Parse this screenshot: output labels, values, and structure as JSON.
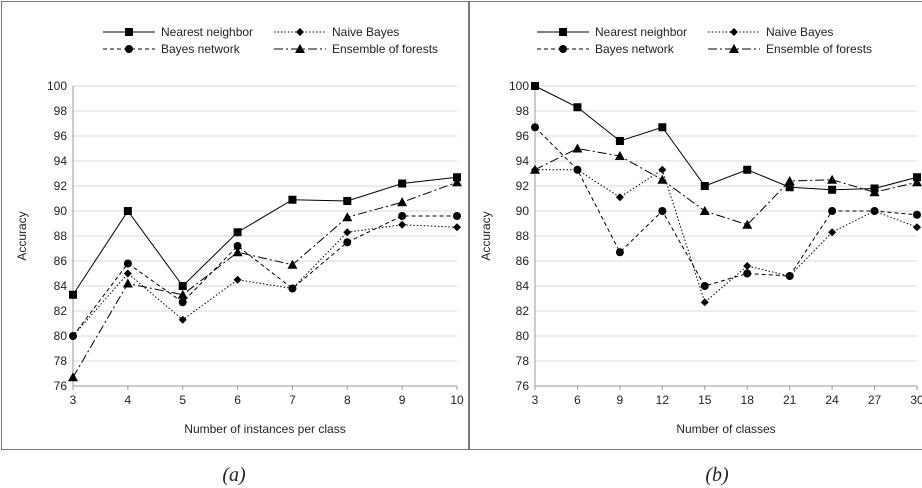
{
  "captions": [
    "(a)",
    "(b)"
  ],
  "chart_data": [
    {
      "type": "line",
      "xlabel": "Number of instances per class",
      "ylabel": "Accuracy",
      "x": [
        3,
        4,
        5,
        6,
        7,
        8,
        9,
        10
      ],
      "ylim": [
        76,
        100
      ],
      "yticks": [
        76,
        78,
        80,
        82,
        84,
        86,
        88,
        90,
        92,
        94,
        96,
        98,
        100
      ],
      "grid": true,
      "legend_position": "top",
      "series": [
        {
          "name": "Nearest neighbor",
          "style": "solid",
          "marker": "square",
          "values": [
            83.3,
            90.0,
            84.0,
            88.3,
            90.9,
            90.8,
            92.2,
            92.7
          ]
        },
        {
          "name": "Naive Bayes",
          "style": "dotted",
          "marker": "diamond",
          "values": [
            80.0,
            85.0,
            81.3,
            84.5,
            83.8,
            88.3,
            88.9,
            88.7
          ]
        },
        {
          "name": "Bayes network",
          "style": "dashed",
          "marker": "circle",
          "values": [
            80.0,
            85.8,
            82.7,
            87.2,
            83.8,
            87.5,
            89.6,
            89.6
          ]
        },
        {
          "name": "Ensemble of forests",
          "style": "dashdot",
          "marker": "triangle",
          "values": [
            76.7,
            84.2,
            83.3,
            86.7,
            85.7,
            89.5,
            90.7,
            92.3
          ]
        }
      ]
    },
    {
      "type": "line",
      "xlabel": "Number of classes",
      "ylabel": "Accuracy",
      "x": [
        3,
        6,
        9,
        12,
        15,
        18,
        21,
        24,
        27,
        30
      ],
      "ylim": [
        76,
        100
      ],
      "yticks": [
        76,
        78,
        80,
        82,
        84,
        86,
        88,
        90,
        92,
        94,
        96,
        98,
        100
      ],
      "grid": true,
      "legend_position": "top",
      "series": [
        {
          "name": "Nearest neighbor",
          "style": "solid",
          "marker": "square",
          "values": [
            100.0,
            98.3,
            95.6,
            96.7,
            92.0,
            93.3,
            91.9,
            91.7,
            91.8,
            92.7
          ]
        },
        {
          "name": "Naive Bayes",
          "style": "dotted",
          "marker": "diamond",
          "values": [
            93.3,
            93.3,
            91.1,
            93.3,
            82.7,
            85.6,
            84.8,
            88.3,
            90.0,
            88.7
          ]
        },
        {
          "name": "Bayes network",
          "style": "dashed",
          "marker": "circle",
          "values": [
            96.7,
            93.3,
            86.7,
            90.0,
            84.0,
            85.0,
            84.8,
            90.0,
            90.0,
            89.7
          ]
        },
        {
          "name": "Ensemble of forests",
          "style": "dashdot",
          "marker": "triangle",
          "values": [
            93.3,
            95.0,
            94.4,
            92.5,
            90.0,
            88.9,
            92.4,
            92.5,
            91.5,
            92.3
          ]
        }
      ]
    }
  ]
}
